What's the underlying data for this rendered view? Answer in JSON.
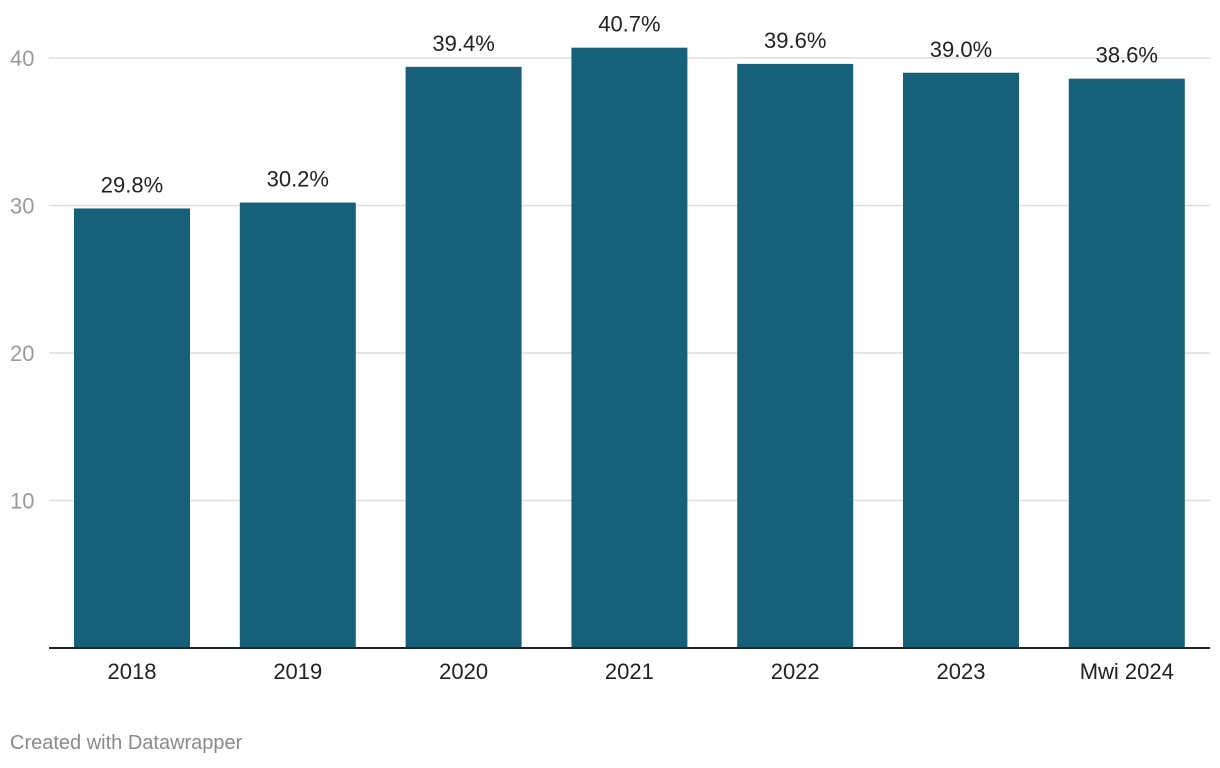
{
  "chart_data": {
    "type": "bar",
    "categories": [
      "2018",
      "2019",
      "2020",
      "2021",
      "2022",
      "2023",
      "Mwi 2024"
    ],
    "values": [
      29.8,
      30.2,
      39.4,
      40.7,
      39.6,
      39.0,
      38.6
    ],
    "data_labels": [
      "29.8%",
      "30.2%",
      "39.4%",
      "40.7%",
      "39.6%",
      "39.0%",
      "38.6%"
    ],
    "y_ticks": [
      10,
      20,
      30,
      40
    ],
    "ylim": [
      0,
      40
    ],
    "grid": true,
    "bar_color": "#17607a",
    "title": "",
    "xlabel": "",
    "ylabel": ""
  },
  "footer": {
    "credit": "Created with Datawrapper"
  }
}
